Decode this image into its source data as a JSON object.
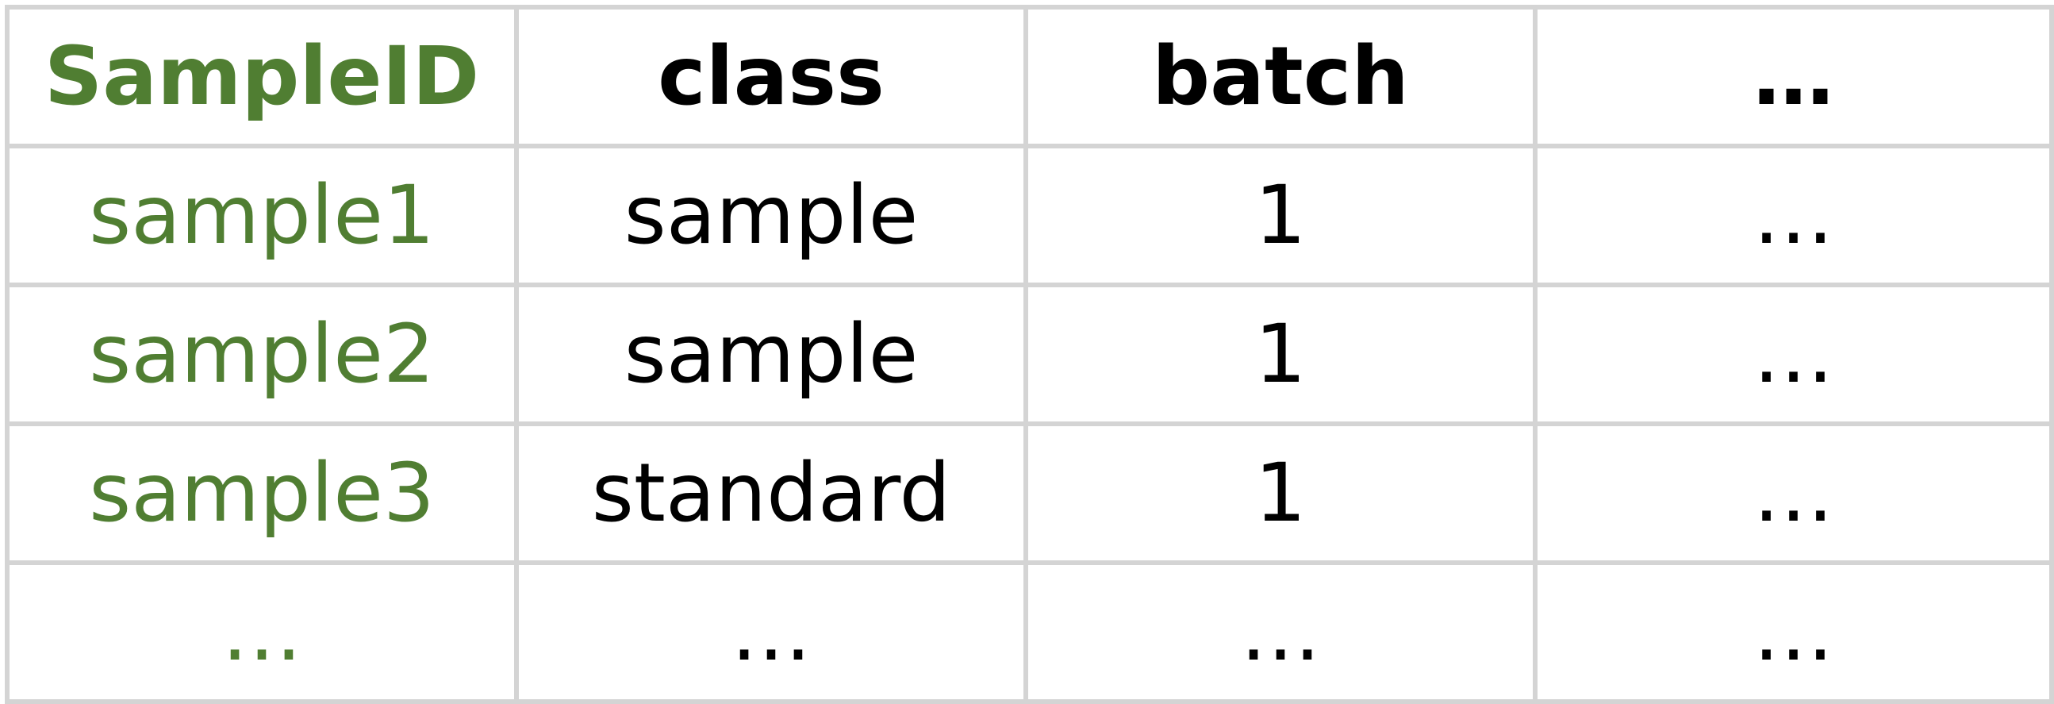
{
  "table": {
    "headers": [
      "SampleID",
      "class",
      "batch",
      "…"
    ],
    "rows": [
      [
        "sample1",
        "sample",
        "1",
        "…"
      ],
      [
        "sample2",
        "sample",
        "1",
        "…"
      ],
      [
        "sample3",
        "standard",
        "1",
        "…"
      ],
      [
        "…",
        "…",
        "…",
        "…"
      ]
    ]
  },
  "colors": {
    "sample_id_text": "#507e32",
    "body_text": "#000000",
    "grid_lines": "#d4d4d4",
    "background": "#ffffff"
  }
}
